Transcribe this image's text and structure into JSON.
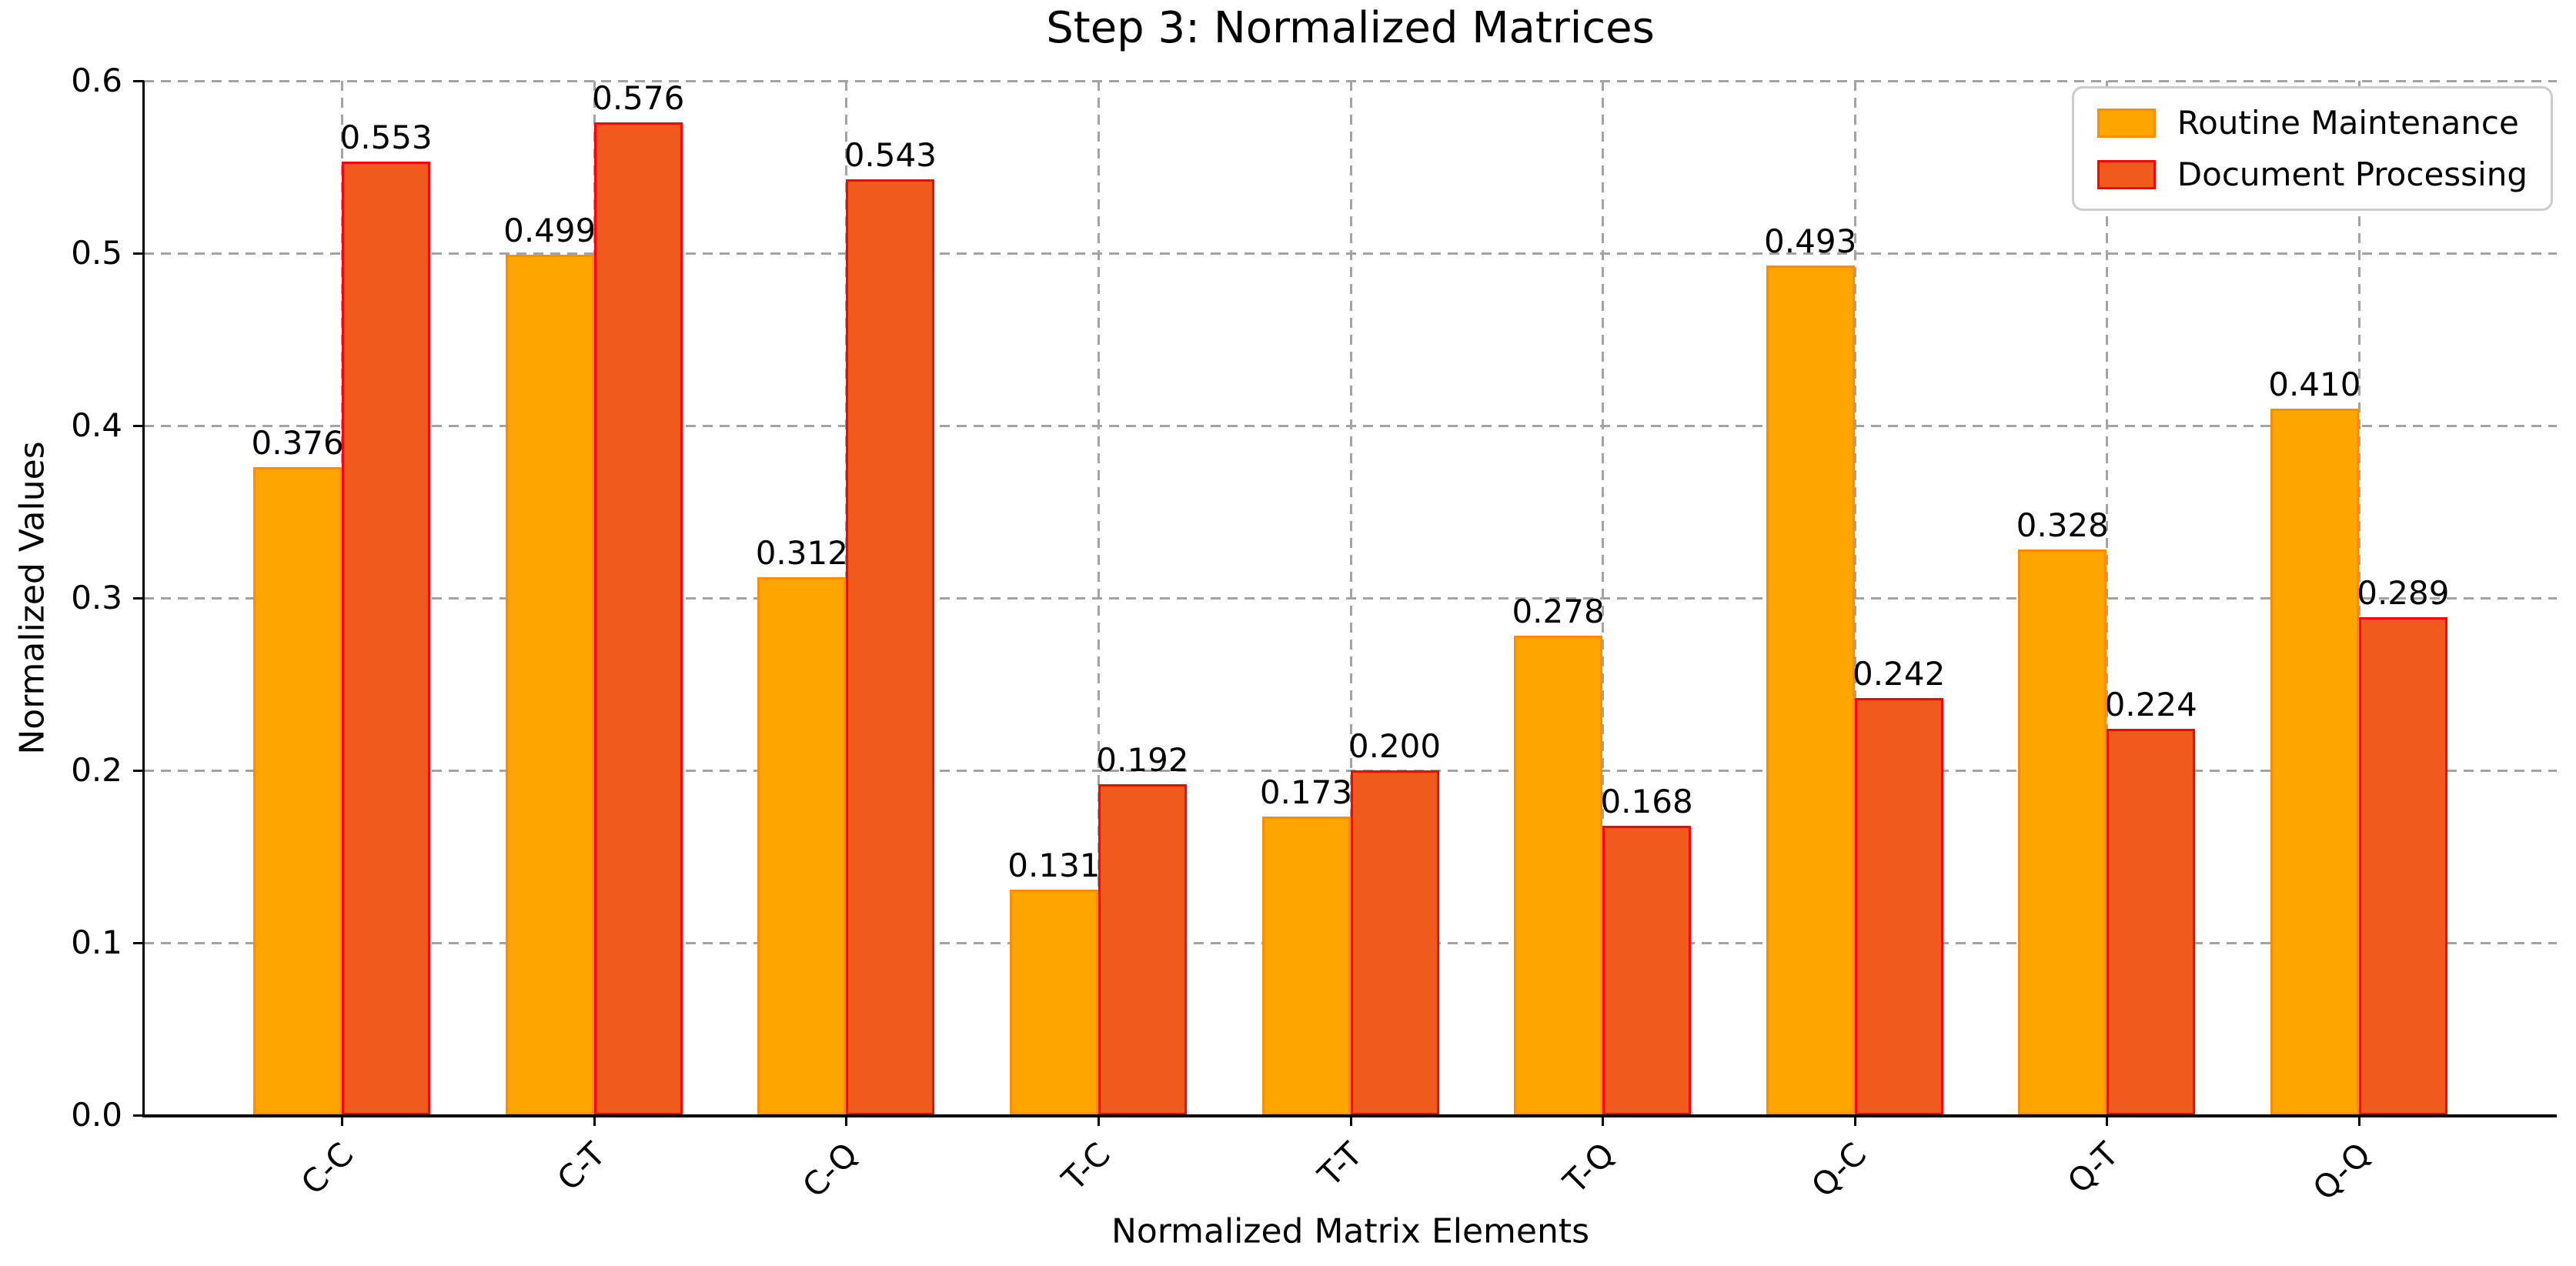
{
  "chart_data": {
    "type": "bar",
    "title": "Step 3: Normalized Matrices",
    "xlabel": "Normalized Matrix Elements",
    "ylabel": "Normalized Values",
    "categories": [
      "C-C",
      "C-T",
      "C-Q",
      "T-C",
      "T-T",
      "T-Q",
      "Q-C",
      "Q-T",
      "Q-Q"
    ],
    "series": [
      {
        "name": "Routine Maintenance",
        "fill_color": "#FFA500",
        "edge_color": "#FF8C00",
        "values": [
          0.376,
          0.499,
          0.312,
          0.131,
          0.173,
          0.278,
          0.493,
          0.328,
          0.41
        ],
        "value_labels": [
          "0.376",
          "0.499",
          "0.312",
          "0.131",
          "0.173",
          "0.278",
          "0.493",
          "0.328",
          "0.410"
        ]
      },
      {
        "name": "Document Processing",
        "fill_color": "#F05A1C",
        "edge_color": "#FF0000",
        "values": [
          0.553,
          0.576,
          0.543,
          0.192,
          0.2,
          0.168,
          0.242,
          0.224,
          0.289
        ],
        "value_labels": [
          "0.553",
          "0.576",
          "0.543",
          "0.192",
          "0.200",
          "0.168",
          "0.242",
          "0.224",
          "0.289"
        ]
      }
    ],
    "ylim": [
      0.0,
      0.6
    ],
    "yticks": [
      "0.0",
      "0.1",
      "0.2",
      "0.3",
      "0.4",
      "0.5",
      "0.6"
    ],
    "grid": "dashed horizontal and vertical gridlines",
    "grid_color": "#a3a3a3",
    "legend_position": "upper right",
    "x_tick_rotation_deg": 45,
    "colors": {
      "background": "#ffffff",
      "spine": "#000000",
      "text": "#000000",
      "legend_border": "#cccccc"
    }
  }
}
